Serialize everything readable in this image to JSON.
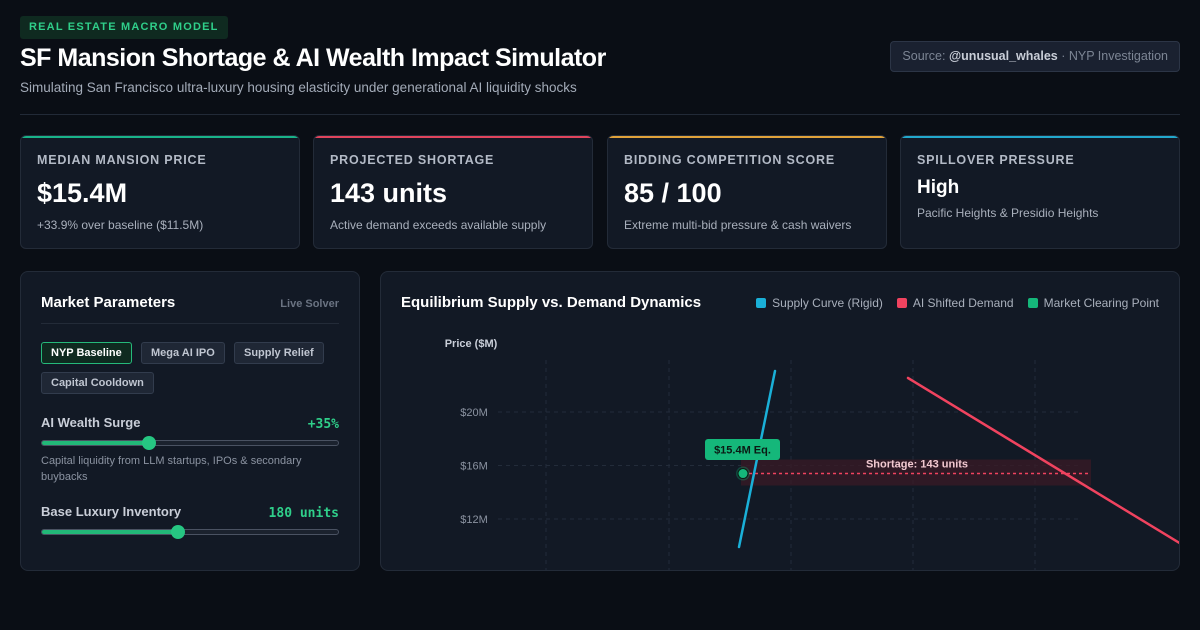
{
  "header": {
    "badge": "REAL ESTATE MACRO MODEL",
    "title": "SF Mansion Shortage & AI Wealth Impact Simulator",
    "subtitle": "Simulating San Francisco ultra-luxury housing elasticity under generational AI liquidity shocks",
    "source_prefix": "Source:",
    "source_handle": "@unusual_whales",
    "source_suffix": "· NYP Investigation"
  },
  "kpis": [
    {
      "label": "MEDIAN MANSION PRICE",
      "value": "$15.4M",
      "note": "+33.9% over baseline ($11.5M)",
      "accent": "#19b389"
    },
    {
      "label": "PROJECTED SHORTAGE",
      "value": "143 units",
      "note": "Active demand exceeds available supply",
      "accent": "#e0445c"
    },
    {
      "label": "BIDDING COMPETITION SCORE",
      "value": "85 / 100",
      "note": "Extreme multi-bid pressure & cash waivers",
      "accent": "#e0a23a"
    },
    {
      "label": "SPILLOVER PRESSURE",
      "value": "High",
      "note": "Pacific Heights & Presidio Heights",
      "accent": "#22a8cc"
    }
  ],
  "params": {
    "title": "Market Parameters",
    "tag": "Live Solver",
    "scenarios": [
      {
        "label": "NYP Baseline",
        "active": true
      },
      {
        "label": "Mega AI IPO",
        "active": false
      },
      {
        "label": "Supply Relief",
        "active": false
      },
      {
        "label": "Capital Cooldown",
        "active": false
      }
    ],
    "sliders": [
      {
        "label": "AI Wealth Surge",
        "value": "+35%",
        "level": 0.36,
        "help": "Capital liquidity from LLM startups, IPOs & secondary buybacks"
      },
      {
        "label": "Base Luxury Inventory",
        "value": "180 units",
        "level": 0.46,
        "help": ""
      }
    ]
  },
  "chart": {
    "title": "Equilibrium Supply vs. Demand Dynamics",
    "legend": [
      {
        "label": "Supply Curve (Rigid)",
        "color": "#1ab0d8"
      },
      {
        "label": "AI Shifted Demand",
        "color": "#f0435f"
      },
      {
        "label": "Market Clearing Point",
        "color": "#15b77a"
      }
    ]
  },
  "chart_data": {
    "type": "line",
    "ylabel": "Price ($M)",
    "y_ticks": [
      {
        "value": 20,
        "label": "$20M"
      },
      {
        "value": 16,
        "label": "$16M"
      },
      {
        "value": 12,
        "label": "$12M"
      }
    ],
    "series": [
      {
        "name": "Supply Curve (Rigid)",
        "points": [
          [
            0.0,
            10.0
          ],
          [
            0.68,
            19.2
          ]
        ],
        "color": "#1ab0d8"
      },
      {
        "name": "AI Shifted Demand",
        "points": [
          [
            2.8,
            18.9
          ],
          [
            5.68,
            10.0
          ]
        ],
        "color": "#f0435f"
      }
    ],
    "equilibrium": {
      "x": 0.0,
      "y": 15.4,
      "label": "$15.4M Eq."
    },
    "shortage": {
      "x0": 0.0,
      "x1": 7.09,
      "y": 15.4,
      "label": "Shortage: 143 units"
    },
    "grid": true
  }
}
